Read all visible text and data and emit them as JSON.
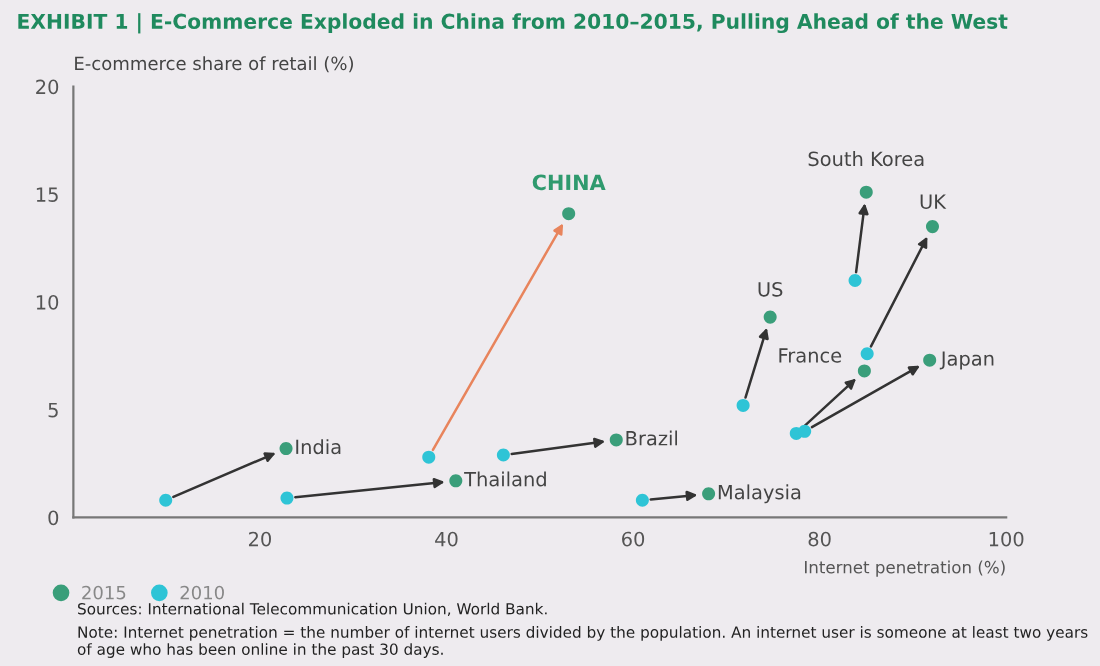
{
  "chart_data": {
    "type": "scatter",
    "title": "EXHIBIT 1 | E-Commerce Exploded in China from 2010–2015, Pulling Ahead of the West",
    "xlabel": "Internet penetration (%)",
    "ylabel": "E-commerce share of retail (%)",
    "xlim": [
      0,
      100
    ],
    "ylim": [
      0,
      20
    ],
    "xticks": [
      20,
      40,
      60,
      80,
      100
    ],
    "yticks": [
      0,
      5,
      10,
      15,
      20
    ],
    "grid": false,
    "legend": "bottom left",
    "marker": "circle",
    "series": [
      {
        "name": "2015",
        "color": "#3a9e7a",
        "x": [
          22.8,
          41.0,
          53.1,
          58.2,
          68.1,
          74.7,
          85.0,
          92.1,
          84.8,
          91.8
        ],
        "values": [
          3.2,
          1.7,
          14.1,
          3.6,
          1.1,
          9.3,
          15.1,
          13.5,
          6.8,
          7.3
        ]
      },
      {
        "name": "2010",
        "color": "#2ec4d6",
        "x": [
          9.9,
          22.9,
          38.1,
          46.1,
          61.0,
          71.8,
          83.8,
          85.1,
          77.5,
          78.4
        ],
        "values": [
          0.8,
          0.9,
          2.8,
          2.9,
          0.8,
          5.2,
          11.0,
          7.6,
          3.9,
          4.0
        ]
      }
    ],
    "annotations": [
      {
        "text": "India",
        "x": 22.8,
        "y": 3.2
      },
      {
        "text": "Thailand",
        "x": 41.0,
        "y": 1.7
      },
      {
        "text": "CHINA",
        "x": 53.1,
        "y": 14.1
      },
      {
        "text": "Brazil",
        "x": 58.2,
        "y": 3.6
      },
      {
        "text": "Malaysia",
        "x": 68.1,
        "y": 1.1
      },
      {
        "text": "US",
        "x": 74.7,
        "y": 9.3
      },
      {
        "text": "South Korea",
        "x": 85.0,
        "y": 15.1
      },
      {
        "text": "UK",
        "x": 92.1,
        "y": 13.5
      },
      {
        "text": "France",
        "x": 84.8,
        "y": 6.8
      },
      {
        "text": "Japan",
        "x": 91.8,
        "y": 7.3
      },
      "Sources: International Telecommunication Union, World Bank.",
      "Note: Internet penetration = the number of internet users divided by the population. An internet user is someone at least two years of age who has been online in the past 30 days."
    ]
  }
}
